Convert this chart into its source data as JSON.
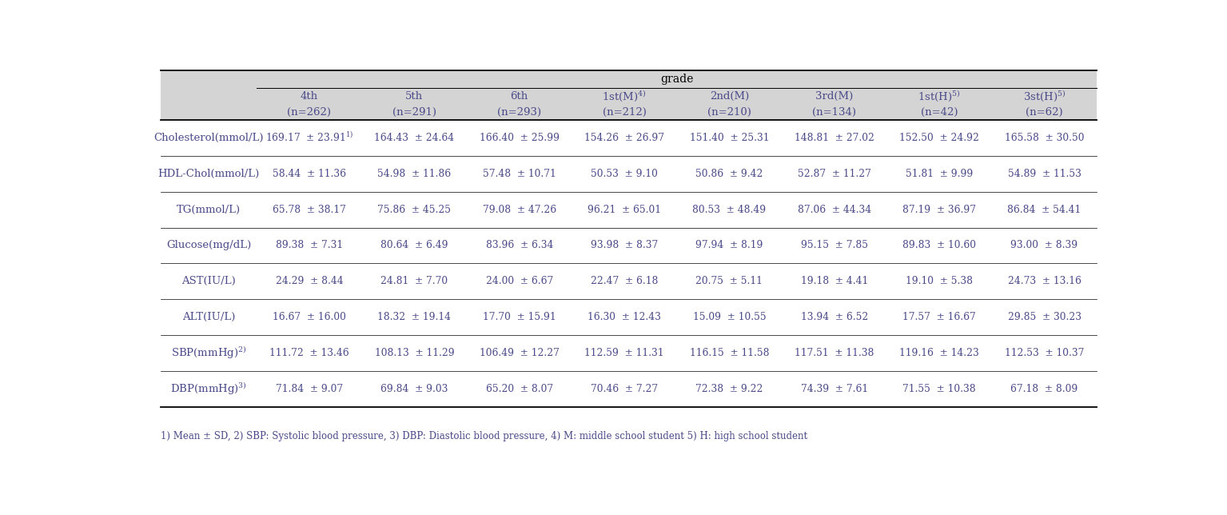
{
  "title": "grade",
  "col_headers_line1": [
    "4th",
    "5th",
    "6th",
    "1st(M)$^{4)}$",
    "2nd(M)",
    "3rd(M)",
    "1st(H)$^{5)}$",
    "3st(H)$^{5)}$"
  ],
  "col_headers_line2": [
    "(n=262)",
    "(n=291)",
    "(n=293)",
    "(n=212)",
    "(n=210)",
    "(n=134)",
    "(n=42)",
    "(n=62)"
  ],
  "row_labels": [
    "Cholesterol(mmol/L)",
    "HDL-Chol(mmol/L)",
    "TG(mmol/L)",
    "Glucose(mg/dL)",
    "AST(IU/L)",
    "ALT(IU/L)",
    "SBP(mmHg)$^{2)}$",
    "DBP(mmHg)$^{3)}$"
  ],
  "data": [
    [
      "169.17  ± 23.91$^{1)}$",
      "164.43  ± 24.64",
      "166.40  ± 25.99",
      "154.26  ± 26.97",
      "151.40  ± 25.31",
      "148.81  ± 27.02",
      "152.50  ± 24.92",
      "165.58  ± 30.50"
    ],
    [
      "58.44  ± 11.36",
      "54.98  ± 11.86",
      "57.48  ± 10.71",
      "50.53  ± 9.10",
      "50.86  ± 9.42",
      "52.87  ± 11.27",
      "51.81  ± 9.99",
      "54.89  ± 11.53"
    ],
    [
      "65.78  ± 38.17",
      "75.86  ± 45.25",
      "79.08  ± 47.26",
      "96.21  ± 65.01",
      "80.53  ± 48.49",
      "87.06  ± 44.34",
      "87.19  ± 36.97",
      "86.84  ± 54.41"
    ],
    [
      "89.38  ± 7.31",
      "80.64  ± 6.49",
      "83.96  ± 6.34",
      "93.98  ± 8.37",
      "97.94  ± 8.19",
      "95.15  ± 7.85",
      "89.83  ± 10.60",
      "93.00  ± 8.39"
    ],
    [
      "24.29  ± 8.44",
      "24.81  ± 7.70",
      "24.00  ± 6.67",
      "22.47  ± 6.18",
      "20.75  ± 5.11",
      "19.18  ± 4.41",
      "19.10  ± 5.38",
      "24.73  ± 13.16"
    ],
    [
      "16.67  ± 16.00",
      "18.32  ± 19.14",
      "17.70  ± 15.91",
      "16.30  ± 12.43",
      "15.09  ± 10.55",
      "13.94  ± 6.52",
      "17.57  ± 16.67",
      "29.85  ± 30.23"
    ],
    [
      "111.72  ± 13.46",
      "108.13  ± 11.29",
      "106.49  ± 12.27",
      "112.59  ± 11.31",
      "116.15  ± 11.58",
      "117.51  ± 11.38",
      "119.16  ± 14.23",
      "112.53  ± 10.37"
    ],
    [
      "71.84  ± 9.07",
      "69.84  ± 9.03",
      "65.20  ± 8.07",
      "70.46  ± 7.27",
      "72.38  ± 9.22",
      "74.39  ± 7.61",
      "71.55  ± 10.38",
      "67.18  ± 8.09"
    ]
  ],
  "footnote": "1) Mean ± SD, 2) SBP: Systolic blood pressure, 3) DBP: Diastolic blood pressure, 4) M: middle school student 5) H: high school student",
  "header_bg": "#d4d4d4",
  "text_color": "#4a4a8a"
}
